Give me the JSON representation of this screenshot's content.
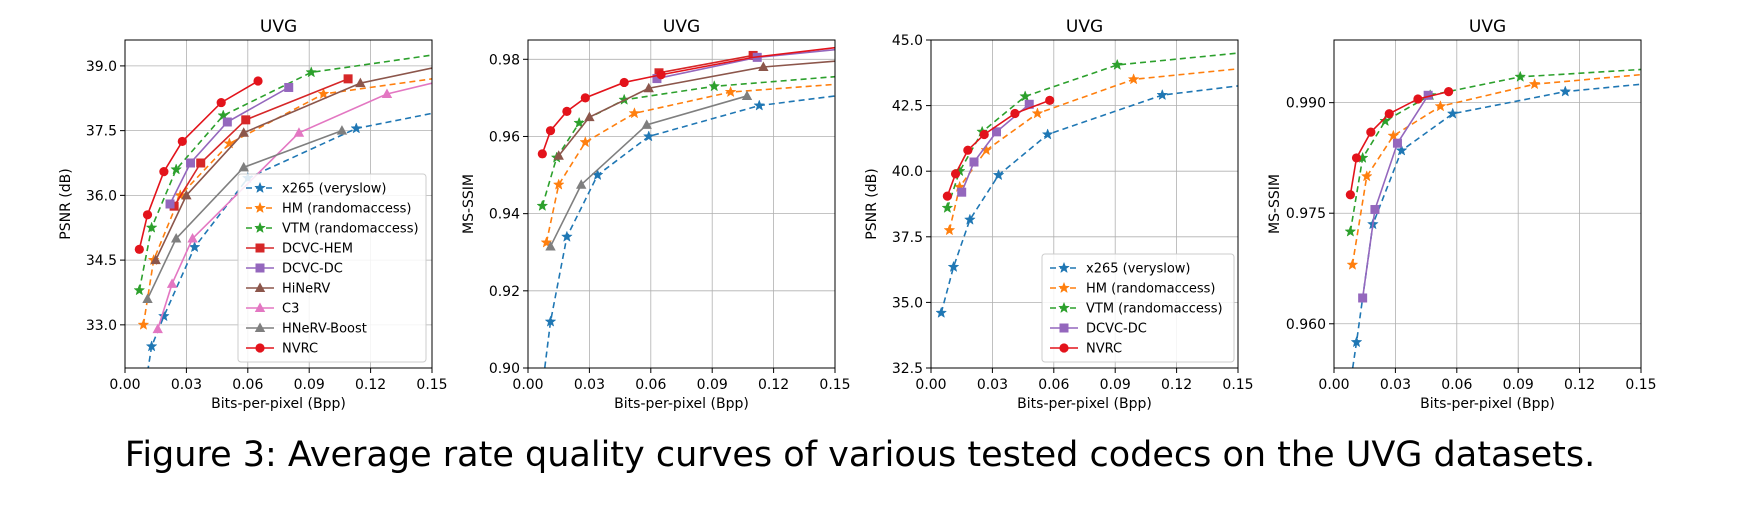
{
  "caption": "Figure 3: Average rate quality curves of various tested codecs on the UVG datasets.",
  "styles": {
    "x265 (veryslow)": {
      "color": "#1f77b4",
      "marker": "star",
      "dash": "6,4"
    },
    "HM (randomaccess)": {
      "color": "#ff7f0e",
      "marker": "star",
      "dash": "6,4"
    },
    "VTM (randomaccess)": {
      "color": "#2ca02c",
      "marker": "star",
      "dash": "6,4"
    },
    "DCVC-HEM": {
      "color": "#d62728",
      "marker": "square",
      "dash": ""
    },
    "DCVC-DC": {
      "color": "#9467bd",
      "marker": "square",
      "dash": ""
    },
    "HiNeRV": {
      "color": "#8c564b",
      "marker": "triangle",
      "dash": ""
    },
    "C3": {
      "color": "#e377c2",
      "marker": "triangle",
      "dash": ""
    },
    "HNeRV-Boost": {
      "color": "#7f7f7f",
      "marker": "triangle",
      "dash": ""
    },
    "NVRC": {
      "color": "#e3131b",
      "marker": "circle",
      "dash": ""
    }
  },
  "chart_data": [
    {
      "type": "line",
      "title": "UVG",
      "xlabel": "Bits-per-pixel (Bpp)",
      "ylabel": "PSNR (dB)",
      "xlim": [
        0.0,
        0.15
      ],
      "ylim": [
        32.0,
        39.6
      ],
      "xticks": [
        "0.00",
        "0.03",
        "0.06",
        "0.09",
        "0.12",
        "0.15"
      ],
      "yticks": [
        "33.0",
        "34.5",
        "36.0",
        "37.5",
        "39.0"
      ],
      "grid": true,
      "legend_position": "lower-right",
      "legend": [
        "x265 (veryslow)",
        "HM (randomaccess)",
        "VTM (randomaccess)",
        "DCVC-HEM",
        "DCVC-DC",
        "HiNeRV",
        "C3",
        "HNeRV-Boost",
        "NVRC"
      ],
      "series": [
        {
          "name": "x265 (veryslow)",
          "points": [
            [
              0.008,
              31.0
            ],
            [
              0.013,
              32.5
            ],
            [
              0.019,
              33.2
            ],
            [
              0.034,
              34.8
            ],
            [
              0.06,
              36.4
            ],
            [
              0.113,
              37.55
            ],
            [
              0.15,
              37.9
            ]
          ],
          "markers": [
            1,
            2,
            3,
            4,
            5
          ]
        },
        {
          "name": "HM (randomaccess)",
          "points": [
            [
              0.009,
              33.0
            ],
            [
              0.014,
              34.5
            ],
            [
              0.027,
              36.0
            ],
            [
              0.051,
              37.2
            ],
            [
              0.097,
              38.35
            ],
            [
              0.15,
              38.7
            ]
          ],
          "markers": [
            0,
            1,
            2,
            3,
            4
          ]
        },
        {
          "name": "VTM (randomaccess)",
          "points": [
            [
              0.007,
              33.8
            ],
            [
              0.013,
              35.25
            ],
            [
              0.025,
              36.6
            ],
            [
              0.048,
              37.85
            ],
            [
              0.091,
              38.85
            ],
            [
              0.15,
              39.25
            ]
          ],
          "markers": [
            0,
            1,
            2,
            3,
            4
          ]
        },
        {
          "name": "DCVC-HEM",
          "points": [
            [
              0.024,
              35.75
            ],
            [
              0.037,
              36.75
            ],
            [
              0.059,
              37.75
            ],
            [
              0.109,
              38.7
            ]
          ],
          "markers": [
            0,
            1,
            2,
            3
          ]
        },
        {
          "name": "DCVC-DC",
          "points": [
            [
              0.022,
              35.8
            ],
            [
              0.032,
              36.75
            ],
            [
              0.05,
              37.7
            ],
            [
              0.08,
              38.5
            ]
          ],
          "markers": [
            0,
            1,
            2,
            3
          ]
        },
        {
          "name": "HiNeRV",
          "points": [
            [
              0.015,
              34.5
            ],
            [
              0.03,
              36.0
            ],
            [
              0.058,
              37.45
            ],
            [
              0.115,
              38.6
            ],
            [
              0.15,
              38.95
            ]
          ],
          "markers": [
            0,
            1,
            2,
            3
          ]
        },
        {
          "name": "C3",
          "points": [
            [
              0.016,
              32.9
            ],
            [
              0.023,
              33.95
            ],
            [
              0.033,
              35.0
            ],
            [
              0.085,
              37.45
            ],
            [
              0.128,
              38.35
            ],
            [
              0.15,
              38.6
            ]
          ],
          "markers": [
            0,
            1,
            2,
            3,
            4
          ]
        },
        {
          "name": "HNeRV-Boost",
          "points": [
            [
              0.011,
              33.6
            ],
            [
              0.025,
              35.0
            ],
            [
              0.058,
              36.65
            ],
            [
              0.106,
              37.5
            ]
          ],
          "markers": [
            0,
            1,
            2,
            3
          ]
        },
        {
          "name": "NVRC",
          "points": [
            [
              0.007,
              34.75
            ],
            [
              0.011,
              35.55
            ],
            [
              0.019,
              36.55
            ],
            [
              0.028,
              37.25
            ],
            [
              0.047,
              38.15
            ],
            [
              0.065,
              38.65
            ]
          ],
          "markers": [
            0,
            1,
            2,
            3,
            4,
            5
          ]
        }
      ]
    },
    {
      "type": "line",
      "title": "UVG",
      "xlabel": "Bits-per-pixel (Bpp)",
      "ylabel": "MS-SSIM",
      "xlim": [
        0.0,
        0.15
      ],
      "ylim": [
        0.9,
        0.985
      ],
      "xticks": [
        "0.00",
        "0.03",
        "0.06",
        "0.09",
        "0.12",
        "0.15"
      ],
      "yticks": [
        "0.90",
        "0.92",
        "0.94",
        "0.96",
        "0.98"
      ],
      "grid": true,
      "series": [
        {
          "name": "x265 (veryslow)",
          "points": [
            [
              0.007,
              0.895
            ],
            [
              0.011,
              0.912
            ],
            [
              0.019,
              0.934
            ],
            [
              0.034,
              0.95
            ],
            [
              0.059,
              0.96
            ],
            [
              0.113,
              0.968
            ],
            [
              0.15,
              0.9705
            ]
          ],
          "markers": [
            1,
            2,
            3,
            4,
            5
          ]
        },
        {
          "name": "HM (randomaccess)",
          "points": [
            [
              0.009,
              0.9325
            ],
            [
              0.015,
              0.9475
            ],
            [
              0.028,
              0.9585
            ],
            [
              0.052,
              0.966
            ],
            [
              0.099,
              0.9715
            ],
            [
              0.15,
              0.9735
            ]
          ],
          "markers": [
            0,
            1,
            2,
            3,
            4
          ]
        },
        {
          "name": "VTM (randomaccess)",
          "points": [
            [
              0.007,
              0.942
            ],
            [
              0.014,
              0.9545
            ],
            [
              0.025,
              0.9635
            ],
            [
              0.047,
              0.9695
            ],
            [
              0.091,
              0.973
            ],
            [
              0.15,
              0.9755
            ]
          ],
          "markers": [
            0,
            1,
            2,
            3,
            4
          ]
        },
        {
          "name": "DCVC-HEM",
          "points": [
            [
              0.064,
              0.9765
            ],
            [
              0.11,
              0.981
            ]
          ],
          "markers": [
            0,
            1
          ]
        },
        {
          "name": "DCVC-DC",
          "points": [
            [
              0.063,
              0.975
            ],
            [
              0.112,
              0.9805
            ],
            [
              0.15,
              0.9825
            ]
          ],
          "markers": [
            0,
            1
          ]
        },
        {
          "name": "HiNeRV",
          "points": [
            [
              0.015,
              0.955
            ],
            [
              0.03,
              0.965
            ],
            [
              0.059,
              0.9725
            ],
            [
              0.115,
              0.978
            ],
            [
              0.15,
              0.9795
            ]
          ],
          "markers": [
            0,
            1,
            2,
            3
          ]
        },
        {
          "name": "HNeRV-Boost",
          "points": [
            [
              0.011,
              0.9315
            ],
            [
              0.026,
              0.9475
            ],
            [
              0.058,
              0.963
            ],
            [
              0.107,
              0.9705
            ]
          ],
          "markers": [
            0,
            1,
            2,
            3
          ]
        },
        {
          "name": "NVRC",
          "points": [
            [
              0.007,
              0.9555
            ],
            [
              0.011,
              0.9615
            ],
            [
              0.019,
              0.9665
            ],
            [
              0.028,
              0.97
            ],
            [
              0.047,
              0.974
            ],
            [
              0.065,
              0.976
            ],
            [
              0.11,
              0.9805
            ],
            [
              0.15,
              0.983
            ]
          ],
          "markers": [
            0,
            1,
            2,
            3,
            4,
            5
          ]
        }
      ]
    },
    {
      "type": "line",
      "title": "UVG",
      "xlabel": "Bits-per-pixel (Bpp)",
      "ylabel": "PSNR (dB)",
      "xlim": [
        0.0,
        0.15
      ],
      "ylim": [
        32.5,
        45.0
      ],
      "xticks": [
        "0.00",
        "0.03",
        "0.06",
        "0.09",
        "0.12",
        "0.15"
      ],
      "yticks": [
        "32.5",
        "35.0",
        "37.5",
        "40.0",
        "42.5",
        "45.0"
      ],
      "grid": true,
      "legend_position": "lower-right",
      "legend": [
        "x265 (veryslow)",
        "HM (randomaccess)",
        "VTM (randomaccess)",
        "DCVC-DC",
        "NVRC"
      ],
      "series": [
        {
          "name": "x265 (veryslow)",
          "points": [
            [
              0.005,
              34.6
            ],
            [
              0.011,
              36.35
            ],
            [
              0.019,
              38.15
            ],
            [
              0.033,
              39.85
            ],
            [
              0.057,
              41.4
            ],
            [
              0.113,
              42.9
            ],
            [
              0.15,
              43.25
            ]
          ],
          "markers": [
            0,
            1,
            2,
            3,
            4,
            5
          ]
        },
        {
          "name": "HM (randomaccess)",
          "points": [
            [
              0.009,
              37.75
            ],
            [
              0.014,
              39.4
            ],
            [
              0.027,
              40.8
            ],
            [
              0.052,
              42.2
            ],
            [
              0.099,
              43.5
            ],
            [
              0.15,
              43.9
            ]
          ],
          "markers": [
            0,
            1,
            2,
            3,
            4
          ]
        },
        {
          "name": "VTM (randomaccess)",
          "points": [
            [
              0.008,
              38.6
            ],
            [
              0.014,
              40.0
            ],
            [
              0.025,
              41.5
            ],
            [
              0.046,
              42.85
            ],
            [
              0.091,
              44.05
            ],
            [
              0.15,
              44.5
            ]
          ],
          "markers": [
            0,
            1,
            2,
            3,
            4
          ]
        },
        {
          "name": "DCVC-DC",
          "points": [
            [
              0.015,
              39.2
            ],
            [
              0.021,
              40.35
            ],
            [
              0.032,
              41.5
            ],
            [
              0.048,
              42.55
            ]
          ],
          "markers": [
            0,
            1,
            2,
            3
          ]
        },
        {
          "name": "NVRC",
          "points": [
            [
              0.008,
              39.05
            ],
            [
              0.012,
              39.9
            ],
            [
              0.018,
              40.8
            ],
            [
              0.026,
              41.4
            ],
            [
              0.041,
              42.2
            ],
            [
              0.058,
              42.7
            ]
          ],
          "markers": [
            0,
            1,
            2,
            3,
            4,
            5
          ]
        }
      ]
    },
    {
      "type": "line",
      "title": "UVG",
      "xlabel": "Bits-per-pixel (Bpp)",
      "ylabel": "MS-SSIM",
      "xlim": [
        0.0,
        0.15
      ],
      "ylim": [
        0.954,
        0.9985
      ],
      "xticks": [
        "0.00",
        "0.03",
        "0.06",
        "0.09",
        "0.12",
        "0.15"
      ],
      "yticks": [
        "0.960",
        "0.975",
        "0.990"
      ],
      "grid": true,
      "series": [
        {
          "name": "x265 (veryslow)",
          "points": [
            [
              0.007,
              0.95
            ],
            [
              0.011,
              0.9575
            ],
            [
              0.019,
              0.9735
            ],
            [
              0.033,
              0.9835
            ],
            [
              0.058,
              0.9885
            ],
            [
              0.113,
              0.9915
            ],
            [
              0.15,
              0.9925
            ]
          ],
          "markers": [
            1,
            2,
            3,
            4,
            5
          ]
        },
        {
          "name": "HM (randomaccess)",
          "points": [
            [
              0.009,
              0.968
            ],
            [
              0.016,
              0.98
            ],
            [
              0.029,
              0.9855
            ],
            [
              0.052,
              0.9895
            ],
            [
              0.098,
              0.9925
            ],
            [
              0.15,
              0.9938
            ]
          ],
          "markers": [
            0,
            1,
            2,
            3,
            4
          ]
        },
        {
          "name": "VTM (randomaccess)",
          "points": [
            [
              0.008,
              0.9725
            ],
            [
              0.014,
              0.9825
            ],
            [
              0.025,
              0.9875
            ],
            [
              0.047,
              0.991
            ],
            [
              0.091,
              0.9935
            ],
            [
              0.15,
              0.9945
            ]
          ],
          "markers": [
            0,
            1,
            2,
            3,
            4
          ]
        },
        {
          "name": "DCVC-DC",
          "points": [
            [
              0.014,
              0.9635
            ],
            [
              0.02,
              0.9755
            ],
            [
              0.031,
              0.9845
            ],
            [
              0.046,
              0.991
            ]
          ],
          "markers": [
            0,
            1,
            2,
            3
          ]
        },
        {
          "name": "NVRC",
          "points": [
            [
              0.008,
              0.9775
            ],
            [
              0.011,
              0.9825
            ],
            [
              0.018,
              0.986
            ],
            [
              0.027,
              0.9885
            ],
            [
              0.041,
              0.9905
            ],
            [
              0.056,
              0.9915
            ]
          ],
          "markers": [
            0,
            1,
            2,
            3,
            4,
            5
          ]
        }
      ]
    }
  ]
}
